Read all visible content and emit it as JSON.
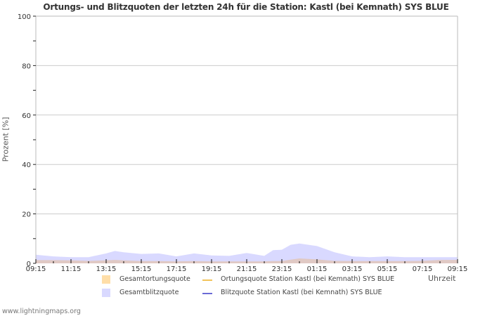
{
  "chart_data": {
    "type": "area",
    "title": "Ortungs- und Blitzquoten der letzten 24h für die Station: Kastl (bei Kemnath) SYS BLUE",
    "xlabel": "Uhrzeit",
    "ylabel": "Prozent   [%]",
    "ylim": [
      0,
      100
    ],
    "yticks": [
      0,
      20,
      40,
      60,
      80,
      100
    ],
    "xtick_labels": [
      "09:15",
      "11:15",
      "13:15",
      "15:15",
      "17:15",
      "19:15",
      "21:15",
      "23:15",
      "01:15",
      "03:15",
      "05:15",
      "07:15",
      "09:15"
    ],
    "grid": true,
    "legend_position": "bottom",
    "x": [
      "09:15",
      "10:15",
      "11:15",
      "12:15",
      "13:15",
      "13:45",
      "14:15",
      "15:15",
      "16:15",
      "17:15",
      "18:15",
      "19:15",
      "20:15",
      "21:15",
      "22:15",
      "22:45",
      "23:15",
      "23:45",
      "00:15",
      "01:15",
      "02:15",
      "03:15",
      "04:15",
      "05:15",
      "06:15",
      "07:15",
      "08:15",
      "09:15"
    ],
    "series": [
      {
        "name": "Gesamtblitzquote",
        "type": "area",
        "color": "#d9d9ff",
        "values": [
          3.5,
          2.8,
          2.5,
          2.5,
          4.0,
          5.0,
          4.5,
          3.8,
          4.0,
          2.8,
          4.0,
          3.2,
          3.0,
          4.2,
          3.0,
          5.3,
          5.5,
          7.5,
          8.0,
          7.0,
          4.5,
          2.8,
          2.5,
          2.8,
          2.5,
          2.5,
          2.5,
          2.5
        ]
      },
      {
        "name": "Gesamtortungsquote",
        "type": "area",
        "color": "#ffdea8",
        "values": [
          1.3,
          1.3,
          1.2,
          1.0,
          1.2,
          1.4,
          1.2,
          0.9,
          0.9,
          0.8,
          0.9,
          0.8,
          0.8,
          0.8,
          0.8,
          0.9,
          0.9,
          1.5,
          2.0,
          1.6,
          1.0,
          0.9,
          0.9,
          0.9,
          0.9,
          1.0,
          1.4,
          1.4
        ]
      },
      {
        "name": "Ortungsquote Station Kastl (bei Kemnath) SYS BLUE",
        "type": "line",
        "color": "#f2c35a",
        "values": []
      },
      {
        "name": "Blitzquote Station Kastl (bei Kemnath) SYS BLUE",
        "type": "line",
        "color": "#6b6bd6",
        "values": []
      }
    ]
  },
  "header": {
    "title": "Ortungs- und Blitzquoten der letzten 24h für die Station: Kastl (bei Kemnath) SYS BLUE"
  },
  "axes": {
    "y_label": "Prozent   [%]",
    "x_unit": "Uhrzeit"
  },
  "legend": {
    "items": [
      {
        "label": "Gesamtortungsquote",
        "color": "#ffdea8",
        "kind": "area"
      },
      {
        "label": "Ortungsquote Station Kastl (bei Kemnath) SYS BLUE",
        "color": "#f2c35a",
        "kind": "line"
      },
      {
        "label": "Gesamtblitzquote",
        "color": "#d9d9ff",
        "kind": "area"
      },
      {
        "label": "Blitzquote Station Kastl (bei Kemnath) SYS BLUE",
        "color": "#6b6bd6",
        "kind": "line"
      }
    ]
  },
  "footer": {
    "source": "www.lightningmaps.org"
  },
  "colors": {
    "grid": "#cccccc",
    "axis": "#bbbbbb",
    "text": "#333333",
    "blitz_fill": "#d9d9ff",
    "ortung_fill": "#e0c9c4"
  }
}
